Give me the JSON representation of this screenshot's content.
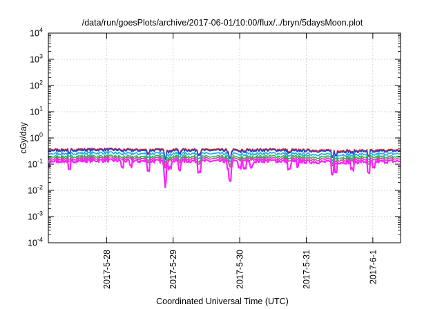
{
  "chart_data": {
    "type": "line",
    "title": "/data/run/goesPlots/archive/2017-06-01/10:00/flux/../bryn/5daysMoon.plot",
    "xlabel": "Coordinated Universal Time (UTC)",
    "ylabel": "cGy/day",
    "yscale": "log",
    "ylim": [
      0.0001,
      10000
    ],
    "xlim": [
      "2017-05-27T03:00",
      "2017-06-01T10:00"
    ],
    "grid": true,
    "x_ticks": [
      "2017-5-28",
      "2017-5-29",
      "2017-5-30",
      "2017-5-31",
      "2017-6-1"
    ],
    "y_ticks": [
      {
        "base": "10",
        "exp": "-4"
      },
      {
        "base": "10",
        "exp": "-3"
      },
      {
        "base": "10",
        "exp": "-2"
      },
      {
        "base": "10",
        "exp": "-1"
      },
      {
        "base": "10",
        "exp": "0"
      },
      {
        "base": "10",
        "exp": "1"
      },
      {
        "base": "10",
        "exp": "2"
      },
      {
        "base": "10",
        "exp": "3"
      },
      {
        "base": "10",
        "exp": "4"
      }
    ],
    "sample_times": [
      "2017-05-27T03:00",
      "2017-05-27T12:00",
      "2017-05-28T00:00",
      "2017-05-28T12:00",
      "2017-05-29T00:00",
      "2017-05-29T12:00",
      "2017-05-30T00:00",
      "2017-05-30T12:00",
      "2017-05-31T00:00",
      "2017-05-31T12:00",
      "2017-06-01T00:00",
      "2017-06-01T10:00"
    ],
    "series": [
      {
        "color": "#e8222a",
        "values": [
          0.36,
          0.37,
          0.38,
          0.36,
          0.37,
          0.36,
          0.36,
          0.37,
          0.35,
          0.33,
          0.34,
          0.35
        ]
      },
      {
        "color": "#2244cc",
        "values": [
          0.33,
          0.34,
          0.35,
          0.33,
          0.34,
          0.33,
          0.33,
          0.34,
          0.32,
          0.3,
          0.31,
          0.32
        ]
      },
      {
        "color": "#22aaee",
        "values": [
          0.25,
          0.26,
          0.27,
          0.25,
          0.26,
          0.25,
          0.25,
          0.26,
          0.24,
          0.23,
          0.24,
          0.25
        ]
      },
      {
        "color": "#22bb44",
        "values": [
          0.19,
          0.2,
          0.2,
          0.19,
          0.2,
          0.19,
          0.19,
          0.2,
          0.19,
          0.18,
          0.19,
          0.19
        ]
      },
      {
        "color": "#cc44aa",
        "values": [
          0.16,
          0.165,
          0.17,
          0.16,
          0.165,
          0.16,
          0.16,
          0.165,
          0.155,
          0.15,
          0.155,
          0.16
        ]
      },
      {
        "color": "#ff22ff",
        "values": [
          0.13,
          0.135,
          0.14,
          0.13,
          0.135,
          0.13,
          0.13,
          0.135,
          0.125,
          0.12,
          0.125,
          0.13
        ]
      }
    ]
  }
}
